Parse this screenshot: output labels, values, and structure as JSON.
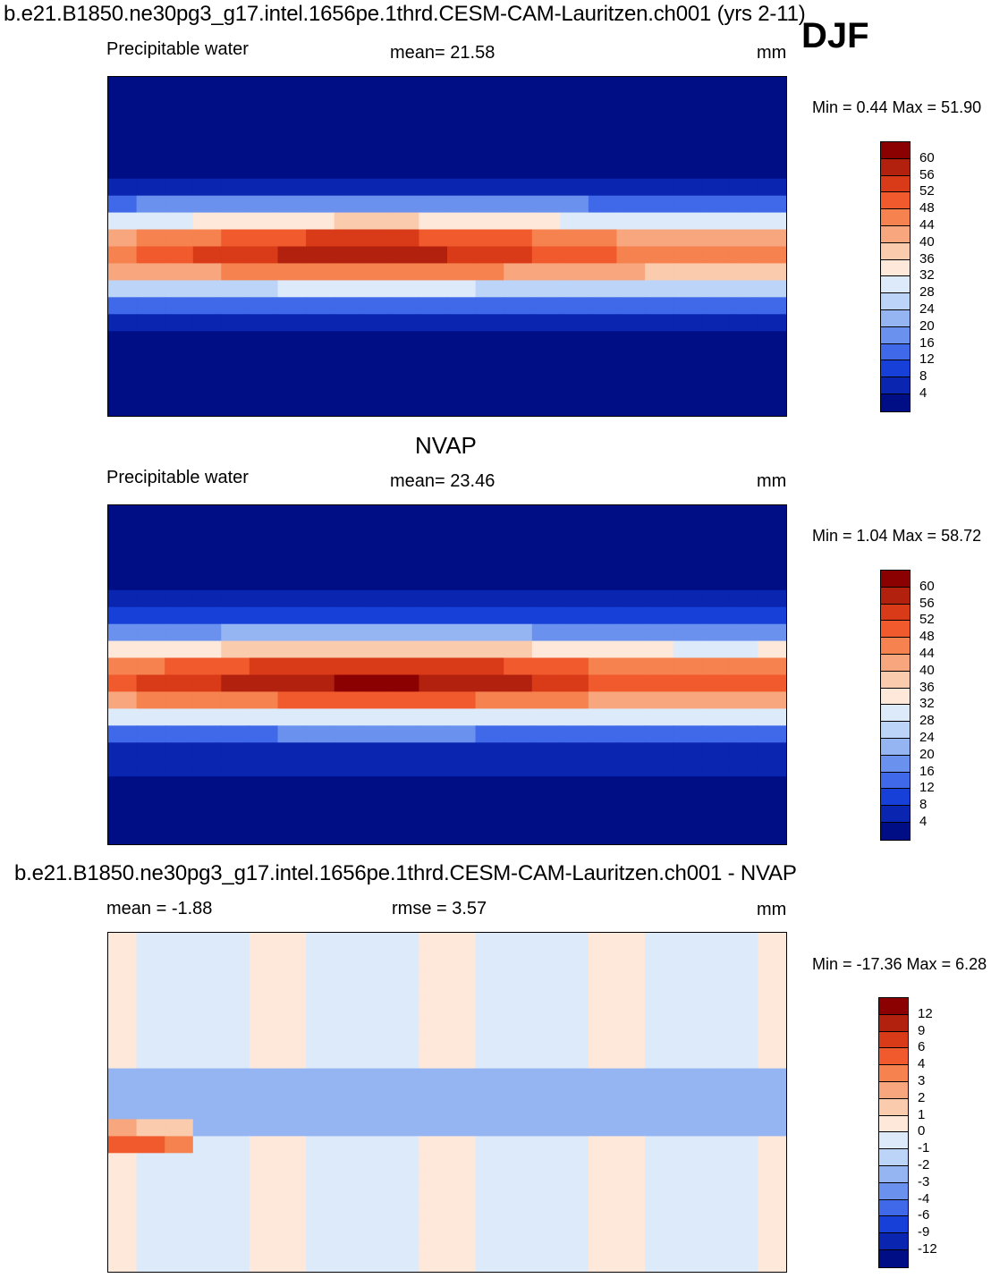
{
  "header": {
    "case_title": "b.e21.B1850.ne30pg3_g17.intel.1656pe.1thrd.CESM-CAM-Lauritzen.ch001 (yrs 2-11)",
    "season": "DJF"
  },
  "panels": [
    {
      "id": "model",
      "left_label": "Precipitable water",
      "center_label": "mean=  21.58",
      "right_label": "mm",
      "minmax": "Min =    0.44 Max =  51.90",
      "colorbar_ticks": [
        "60",
        "56",
        "52",
        "48",
        "44",
        "40",
        "36",
        "32",
        "28",
        "24",
        "20",
        "16",
        "12",
        "8",
        "4"
      ],
      "colors": [
        "#8b0000",
        "#b2200e",
        "#d93a17",
        "#f05a2c",
        "#f5824f",
        "#f8a67d",
        "#fbcbae",
        "#fde8da",
        "#dceafa",
        "#bcd4f7",
        "#94b5f2",
        "#6a91ed",
        "#3f69e8",
        "#1740d8",
        "#0a25b0",
        "#000e86"
      ]
    },
    {
      "id": "obs",
      "title": "NVAP",
      "left_label": "Precipitable water",
      "center_label": "mean=  23.46",
      "right_label": "mm",
      "minmax": "Min =    1.04 Max =  58.72",
      "colorbar_ticks": [
        "60",
        "56",
        "52",
        "48",
        "44",
        "40",
        "36",
        "32",
        "28",
        "24",
        "20",
        "16",
        "12",
        "8",
        "4"
      ],
      "colors": [
        "#8b0000",
        "#b2200e",
        "#d93a17",
        "#f05a2c",
        "#f5824f",
        "#f8a67d",
        "#fbcbae",
        "#fde8da",
        "#dceafa",
        "#bcd4f7",
        "#94b5f2",
        "#6a91ed",
        "#3f69e8",
        "#1740d8",
        "#0a25b0",
        "#000e86"
      ]
    },
    {
      "id": "diff",
      "title": "b.e21.B1850.ne30pg3_g17.intel.1656pe.1thrd.CESM-CAM-Lauritzen.ch001 - NVAP",
      "left_label": "mean =  -1.88",
      "center_label": "rmse =    3.57",
      "right_label": "mm",
      "minmax": "Min = -17.36 Max =    6.28",
      "colorbar_ticks": [
        "12",
        "9",
        "6",
        "4",
        "3",
        "2",
        "1",
        "0",
        "-1",
        "-2",
        "-3",
        "-4",
        "-6",
        "-9",
        "-12"
      ],
      "colors": [
        "#8b0000",
        "#b2200e",
        "#d93a17",
        "#f05a2c",
        "#f5824f",
        "#f8a67d",
        "#fbcbae",
        "#fde8da",
        "#dceafa",
        "#bcd4f7",
        "#94b5f2",
        "#6a91ed",
        "#3f69e8",
        "#1740d8",
        "#0a25b0",
        "#000e86"
      ]
    }
  ]
}
